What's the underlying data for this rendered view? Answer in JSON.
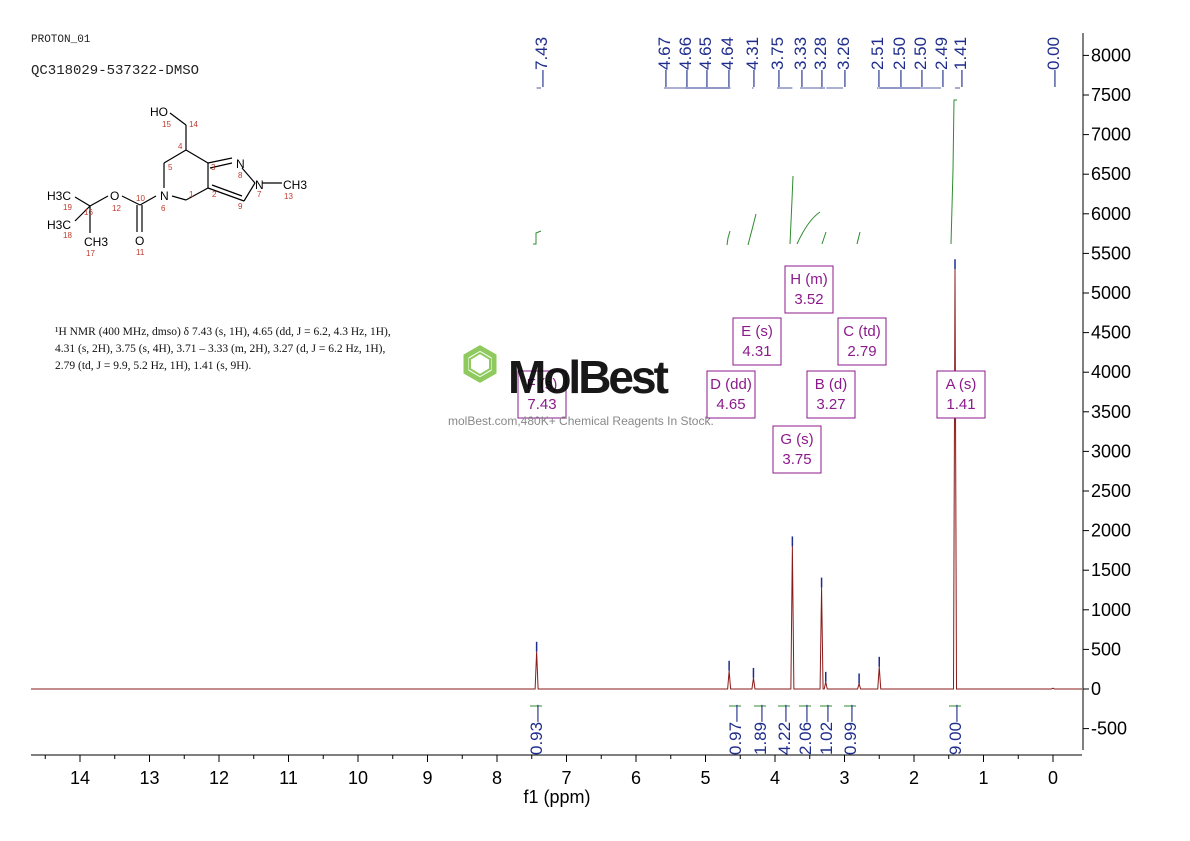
{
  "header": {
    "experiment": "PROTON_01",
    "sample": "QC318029-537322-DMSO"
  },
  "nmr_text": {
    "lines": [
      "¹H NMR (400 MHz, dmso) δ 7.43 (s, 1H), 4.65 (dd, J = 6.2, 4.3 Hz, 1H),",
      "4.31 (s, 2H), 3.75 (s, 4H), 3.71 – 3.33 (m, 2H), 3.27 (d, J = 6.2 Hz, 1H),",
      "2.79 (td, J = 9.9, 5.2 Hz, 1H), 1.41 (s, 9H)."
    ]
  },
  "structure": {
    "labels": {
      "ho": "HO",
      "n": "N",
      "ch3": "CH3",
      "o": "O",
      "h3c": "H3C"
    },
    "atom_numbers": [
      "15",
      "14",
      "4",
      "5",
      "3",
      "8",
      "7",
      "13",
      "6",
      "1",
      "2",
      "9",
      "12",
      "10",
      "16",
      "19",
      "18",
      "17",
      "11"
    ]
  },
  "watermark": {
    "brand": "MolBest",
    "tagline": "molBest.com,480K+ Chemical Reagents In Stock."
  },
  "colors": {
    "spectrum": "#8b1a1a",
    "peak_labels": "#1f2d8c",
    "integral": "#2e8b2e",
    "multiplet": "#8b1a8b",
    "axis": "#000000",
    "brand_green": "#7ac142"
  },
  "chart_data": {
    "type": "line",
    "xlabel": "f1 (ppm)",
    "ylabel": "",
    "x_axis": {
      "min": 14.6,
      "max": -0.4,
      "reversed": true,
      "ticks": [
        14,
        13,
        12,
        11,
        10,
        9,
        8,
        7,
        6,
        5,
        4,
        3,
        2,
        1,
        0
      ]
    },
    "y_axis": {
      "min": -800,
      "max": 8300,
      "ticks": [
        8000,
        7500,
        7000,
        6500,
        6000,
        5500,
        5000,
        4500,
        4000,
        3500,
        3000,
        2500,
        2000,
        1500,
        1000,
        500,
        0,
        -500
      ],
      "position": "right"
    },
    "grid": false,
    "peaks_ppm": [
      7.43,
      4.67,
      4.66,
      4.65,
      4.64,
      4.31,
      3.75,
      3.33,
      3.28,
      3.26,
      2.51,
      2.5,
      2.5,
      2.49,
      1.41,
      0.0
    ],
    "peak_label_text": [
      "7.43",
      "4.67",
      "4.66",
      "4.65",
      "4.64",
      "4.31",
      "3.75",
      "3.33",
      "3.28",
      "3.26",
      "2.51",
      "2.50",
      "2.50",
      "2.49",
      "1.41",
      "0.00"
    ],
    "spectrum_peaks": [
      {
        "ppm": 7.43,
        "height": 470
      },
      {
        "ppm": 4.66,
        "height": 230
      },
      {
        "ppm": 4.31,
        "height": 140
      },
      {
        "ppm": 3.75,
        "height": 1800
      },
      {
        "ppm": 3.33,
        "height": 1280
      },
      {
        "ppm": 3.27,
        "height": 90
      },
      {
        "ppm": 2.79,
        "height": 70
      },
      {
        "ppm": 2.5,
        "height": 280
      },
      {
        "ppm": 1.41,
        "height": 5300
      },
      {
        "ppm": 0.0,
        "height": 10
      }
    ],
    "integrals": [
      {
        "ppm": 7.43,
        "value": "0.93"
      },
      {
        "ppm": 4.65,
        "value": "0.97"
      },
      {
        "ppm": 4.31,
        "value": "1.89"
      },
      {
        "ppm": 3.75,
        "value": "4.22"
      },
      {
        "ppm": 3.52,
        "value": "2.06"
      },
      {
        "ppm": 3.27,
        "value": "1.02"
      },
      {
        "ppm": 2.79,
        "value": "0.99"
      },
      {
        "ppm": 1.41,
        "value": "9.00"
      }
    ],
    "multiplets": [
      {
        "id": "F",
        "type": "(s)",
        "shift": "7.43"
      },
      {
        "id": "D",
        "type": "(dd)",
        "shift": "4.65"
      },
      {
        "id": "E",
        "type": "(s)",
        "shift": "4.31"
      },
      {
        "id": "H",
        "type": "(m)",
        "shift": "3.52"
      },
      {
        "id": "G",
        "type": "(s)",
        "shift": "3.75"
      },
      {
        "id": "B",
        "type": "(d)",
        "shift": "3.27"
      },
      {
        "id": "C",
        "type": "(td)",
        "shift": "2.79"
      },
      {
        "id": "A",
        "type": "(s)",
        "shift": "1.41"
      }
    ]
  }
}
